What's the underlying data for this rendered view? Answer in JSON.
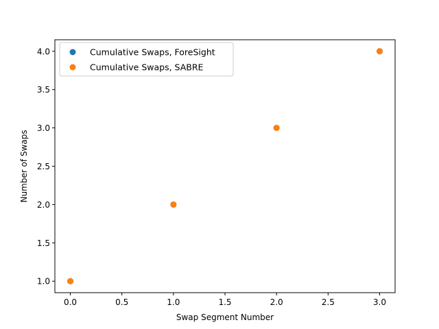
{
  "chart_data": {
    "type": "scatter",
    "title": "",
    "xlabel": "Swap Segment Number",
    "ylabel": "Number of Swaps",
    "xlim": [
      -0.15,
      3.15
    ],
    "ylim": [
      0.85,
      4.15
    ],
    "x_ticks": [
      0.0,
      0.5,
      1.0,
      1.5,
      2.0,
      2.5,
      3.0
    ],
    "x_tick_labels": [
      "0.0",
      "0.5",
      "1.0",
      "1.5",
      "2.0",
      "2.5",
      "3.0"
    ],
    "y_ticks": [
      1.0,
      1.5,
      2.0,
      2.5,
      3.0,
      3.5,
      4.0
    ],
    "y_tick_labels": [
      "1.0",
      "1.5",
      "2.0",
      "2.5",
      "3.0",
      "3.5",
      "4.0"
    ],
    "grid": false,
    "legend_position": "top-left",
    "series": [
      {
        "name": "Cumulative Swaps, ForeSight",
        "color": "#1f77b4",
        "x": [
          0,
          1,
          2,
          3
        ],
        "y": [
          1,
          2,
          3,
          4
        ]
      },
      {
        "name": "Cumulative Swaps, SABRE",
        "color": "#ff7f0e",
        "x": [
          0,
          1,
          2,
          3
        ],
        "y": [
          1,
          2,
          3,
          4
        ]
      }
    ]
  }
}
